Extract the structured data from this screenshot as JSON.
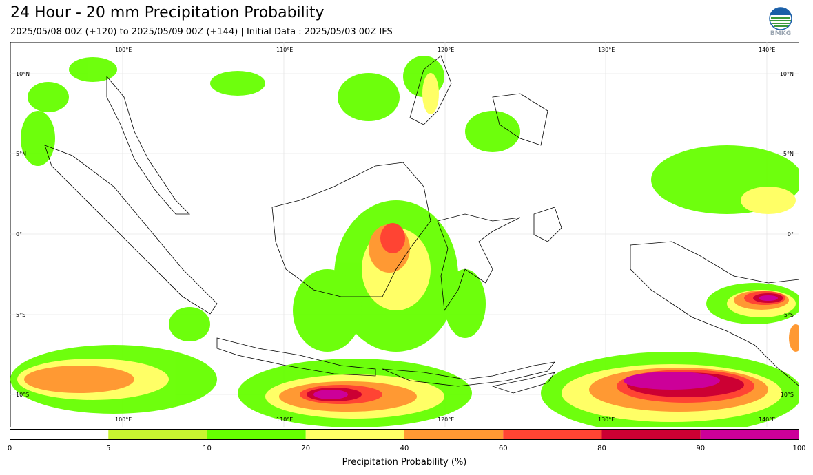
{
  "header": {
    "title": "24 Hour - 20 mm Precipitation Probability",
    "subtitle": "2025/05/08 00Z (+120) to 2025/05/09 00Z (+144) | Initial Data : 2025/05/03 00Z IFS",
    "logo_text": "BMKG"
  },
  "map": {
    "lon_labels": [
      "100°E",
      "110°E",
      "120°E",
      "130°E",
      "140°E"
    ],
    "lat_labels": [
      "10°N",
      "5°N",
      "0°",
      "5°S",
      "10°S"
    ],
    "colors": {
      "land_outline": "#000000",
      "grid": "#cccccc"
    }
  },
  "colorbar": {
    "ticks": [
      "0",
      "5",
      "10",
      "20",
      "40",
      "60",
      "80",
      "90",
      "100"
    ],
    "colors": [
      "#ffffff",
      "#c8f530",
      "#66ff00",
      "#ffff66",
      "#ff9933",
      "#ff4433",
      "#cc0033",
      "#cc0099"
    ],
    "label": "Precipitation Probability (%)"
  }
}
